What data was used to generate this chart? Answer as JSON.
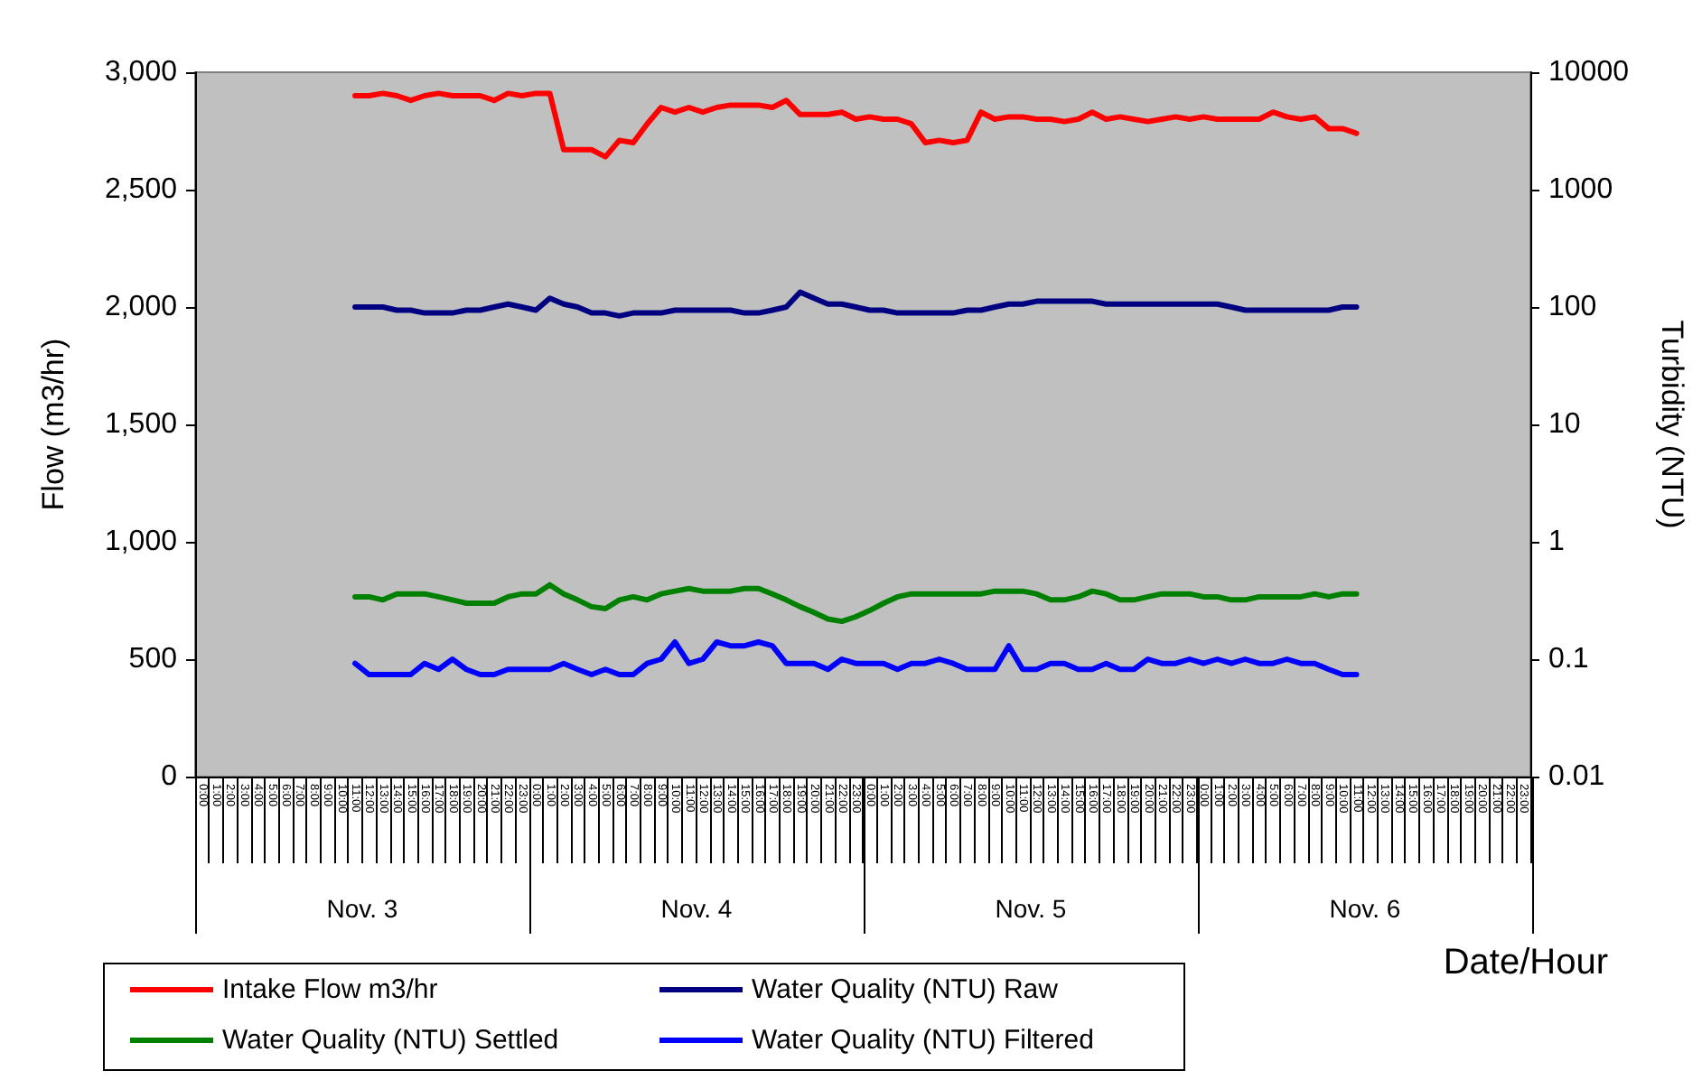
{
  "chart_data": {
    "type": "line",
    "categories": [
      "0:00",
      "1:00",
      "2:00",
      "3:00",
      "4:00",
      "5:00",
      "6:00",
      "7:00",
      "8:00",
      "9:00",
      "10:00",
      "11:00",
      "12:00",
      "13:00",
      "14:00",
      "15:00",
      "16:00",
      "17:00",
      "18:00",
      "19:00",
      "20:00",
      "21:00",
      "22:00",
      "23:00",
      "0:00",
      "1:00",
      "2:00",
      "3:00",
      "4:00",
      "5:00",
      "6:00",
      "7:00",
      "8:00",
      "9:00",
      "10:00",
      "11:00",
      "12:00",
      "13:00",
      "14:00",
      "15:00",
      "16:00",
      "17:00",
      "18:00",
      "19:00",
      "20:00",
      "21:00",
      "22:00",
      "23:00",
      "0:00",
      "1:00",
      "2:00",
      "3:00",
      "4:00",
      "5:00",
      "6:00",
      "7:00",
      "8:00",
      "9:00",
      "10:00",
      "11:00",
      "12:00",
      "13:00",
      "14:00",
      "15:00",
      "16:00",
      "17:00",
      "18:00",
      "19:00",
      "20:00",
      "21:00",
      "22:00",
      "23:00",
      "0:00",
      "1:00",
      "2:00",
      "3:00",
      "4:00",
      "5:00",
      "6:00",
      "7:00",
      "8:00",
      "9:00",
      "10:00",
      "11:00",
      "12:00",
      "13:00",
      "14:00",
      "15:00",
      "16:00",
      "17:00",
      "18:00",
      "19:00",
      "20:00",
      "21:00",
      "22:00",
      "23:00"
    ],
    "series": [
      {
        "name": "Intake Flow m3/hr",
        "color": "#ff0000",
        "values": [
          null,
          null,
          null,
          null,
          null,
          null,
          null,
          null,
          null,
          null,
          null,
          2900,
          2900,
          2910,
          2900,
          2880,
          2900,
          2910,
          2900,
          2900,
          2900,
          2880,
          2910,
          2900,
          2910,
          2910,
          2670,
          2670,
          2670,
          2640,
          2710,
          2700,
          2780,
          2850,
          2830,
          2850,
          2830,
          2850,
          2860,
          2860,
          2860,
          2850,
          2880,
          2820,
          2820,
          2820,
          2830,
          2800,
          2810,
          2800,
          2800,
          2780,
          2700,
          2710,
          2700,
          2710,
          2830,
          2800,
          2810,
          2810,
          2800,
          2800,
          2790,
          2800,
          2830,
          2800,
          2810,
          2800,
          2790,
          2800,
          2810,
          2800,
          2810,
          2800,
          2800,
          2800,
          2800,
          2830,
          2810,
          2800,
          2810,
          2760,
          2760,
          2740,
          null,
          null,
          null,
          null,
          null,
          null,
          null,
          null,
          null,
          null,
          null,
          null
        ]
      },
      {
        "name": "Water Quality (NTU) Raw",
        "color": "#000080",
        "axis": "y2",
        "values": [
          null,
          null,
          null,
          null,
          null,
          null,
          null,
          null,
          null,
          null,
          null,
          100,
          100,
          100,
          94,
          94,
          89,
          89,
          89,
          94,
          94,
          100,
          106,
          100,
          94,
          119,
          106,
          100,
          89,
          89,
          84,
          89,
          89,
          89,
          94,
          94,
          94,
          94,
          94,
          89,
          89,
          94,
          100,
          134,
          119,
          106,
          106,
          100,
          94,
          94,
          89,
          89,
          89,
          89,
          89,
          94,
          94,
          100,
          106,
          106,
          112,
          112,
          112,
          112,
          112,
          106,
          106,
          106,
          106,
          106,
          106,
          106,
          106,
          106,
          100,
          94,
          94,
          94,
          94,
          94,
          94,
          94,
          100,
          100,
          null,
          null,
          null,
          null,
          null,
          null,
          null,
          null,
          null,
          null,
          null,
          null
        ]
      },
      {
        "name": "Water Quality (NTU) Settled",
        "color": "#008000",
        "axis": "y2",
        "values": [
          null,
          null,
          null,
          null,
          null,
          null,
          null,
          null,
          null,
          null,
          null,
          0.34,
          0.34,
          0.32,
          0.36,
          0.36,
          0.36,
          0.34,
          0.32,
          0.3,
          0.3,
          0.3,
          0.34,
          0.36,
          0.36,
          0.43,
          0.36,
          0.32,
          0.28,
          0.27,
          0.32,
          0.34,
          0.32,
          0.36,
          0.38,
          0.4,
          0.38,
          0.38,
          0.38,
          0.4,
          0.4,
          0.36,
          0.32,
          0.28,
          0.25,
          0.22,
          0.21,
          0.23,
          0.26,
          0.3,
          0.34,
          0.36,
          0.36,
          0.36,
          0.36,
          0.36,
          0.36,
          0.38,
          0.38,
          0.38,
          0.36,
          0.32,
          0.32,
          0.34,
          0.38,
          0.36,
          0.32,
          0.32,
          0.34,
          0.36,
          0.36,
          0.36,
          0.34,
          0.34,
          0.32,
          0.32,
          0.34,
          0.34,
          0.34,
          0.34,
          0.36,
          0.34,
          0.36,
          0.36,
          null,
          null,
          null,
          null,
          null,
          null,
          null,
          null,
          null,
          null,
          null,
          null
        ]
      },
      {
        "name": "Water Quality (NTU) Filtered",
        "color": "#0000ff",
        "axis": "y2",
        "values": [
          null,
          null,
          null,
          null,
          null,
          null,
          null,
          null,
          null,
          null,
          null,
          0.092,
          0.074,
          0.074,
          0.074,
          0.074,
          0.092,
          0.082,
          0.1,
          0.082,
          0.074,
          0.074,
          0.082,
          0.082,
          0.082,
          0.082,
          0.092,
          0.082,
          0.074,
          0.082,
          0.074,
          0.074,
          0.092,
          0.1,
          0.14,
          0.092,
          0.1,
          0.14,
          0.13,
          0.13,
          0.14,
          0.13,
          0.092,
          0.092,
          0.092,
          0.082,
          0.1,
          0.092,
          0.092,
          0.092,
          0.082,
          0.092,
          0.092,
          0.1,
          0.092,
          0.082,
          0.082,
          0.082,
          0.13,
          0.082,
          0.082,
          0.092,
          0.092,
          0.082,
          0.082,
          0.092,
          0.082,
          0.082,
          0.1,
          0.092,
          0.092,
          0.1,
          0.092,
          0.1,
          0.092,
          0.1,
          0.092,
          0.092,
          0.1,
          0.092,
          0.092,
          0.082,
          0.074,
          0.074,
          null,
          null,
          null,
          null,
          null,
          null,
          null,
          null,
          null,
          null,
          null,
          null
        ]
      }
    ],
    "xlabel": "Date/Hour",
    "ylabel": "Flow (m3/hr)",
    "y2label": "Turbidity (NTU)",
    "annotations": [
      "Nov. 3",
      "Nov. 4",
      "Nov. 5",
      "Nov. 6"
    ],
    "ylim": [
      0,
      3000
    ],
    "yticks": [
      0,
      500,
      {
        "value": 1000,
        "label": "1,000"
      },
      {
        "value": 1500,
        "label": "1,500"
      },
      {
        "value": 2000,
        "label": "2,000"
      },
      {
        "value": 2500,
        "label": "2,500"
      },
      {
        "value": 3000,
        "label": "3,000"
      }
    ],
    "y2lim": [
      0.01,
      10000
    ],
    "y2ticks": [
      0.01,
      0.1,
      1,
      10,
      100,
      1000,
      10000
    ],
    "log": "y2",
    "grid": false,
    "legend": "bottom left",
    "marker": "none"
  }
}
